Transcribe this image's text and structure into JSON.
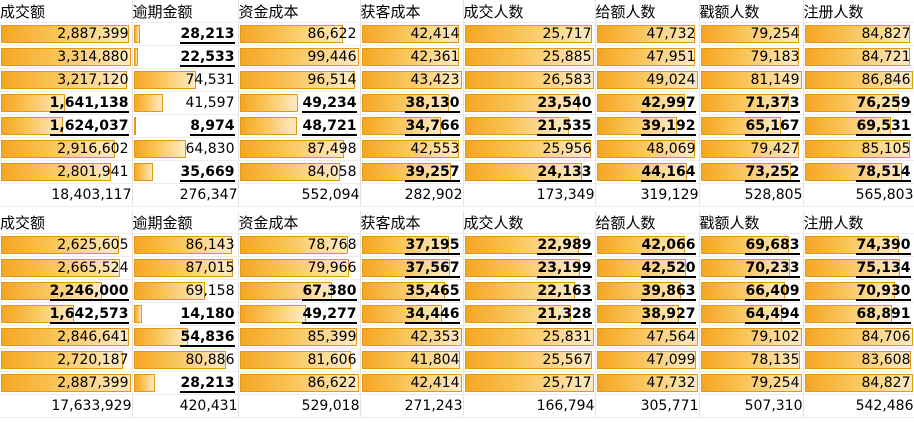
{
  "columns": [
    "成交额",
    "逾期金额",
    "资金成本",
    "获客成本",
    "成交人数",
    "给额人数",
    "戳额人数",
    "注册人数"
  ],
  "colors": {
    "bar_fill": "#f5a623",
    "bar_border": "#e39a12",
    "gridline": "#e3e3e3"
  },
  "tables": [
    {
      "rows": [
        [
          {
            "v": "2,887,399",
            "f": 0.99
          },
          {
            "v": "28,213",
            "f": 0.08,
            "b": true,
            "u": true
          },
          {
            "v": "86,622",
            "f": 0.87
          },
          {
            "v": "42,414",
            "f": 0.98
          },
          {
            "v": "25,717",
            "f": 0.99
          },
          {
            "v": "47,732",
            "f": 0.98
          },
          {
            "v": "79,254",
            "f": 0.98
          },
          {
            "v": "84,827",
            "f": 0.98
          }
        ],
        [
          {
            "v": "3,314,880",
            "f": 1.0
          },
          {
            "v": "22,533",
            "f": 0.06,
            "b": true,
            "u": true
          },
          {
            "v": "99,446",
            "f": 1.0
          },
          {
            "v": "42,361",
            "f": 0.98
          },
          {
            "v": "25,885",
            "f": 1.0
          },
          {
            "v": "47,951",
            "f": 0.98
          },
          {
            "v": "79,183",
            "f": 0.98
          },
          {
            "v": "84,721",
            "f": 0.98
          }
        ],
        [
          {
            "v": "3,217,120",
            "f": 0.97
          },
          {
            "v": "74,531",
            "f": 0.61
          },
          {
            "v": "96,514",
            "f": 0.97
          },
          {
            "v": "43,423",
            "f": 1.0
          },
          {
            "v": "26,583",
            "f": 1.0
          },
          {
            "v": "49,024",
            "f": 1.0
          },
          {
            "v": "81,149",
            "f": 1.0
          },
          {
            "v": "86,846",
            "f": 1.0
          }
        ],
        [
          {
            "v": "1,641,138",
            "f": 0.5,
            "b": true,
            "u": true
          },
          {
            "v": "41,597",
            "f": 0.3
          },
          {
            "v": "49,234",
            "f": 0.5,
            "b": true,
            "u": true
          },
          {
            "v": "38,130",
            "f": 0.88,
            "b": true,
            "u": true
          },
          {
            "v": "23,540",
            "f": 0.89,
            "b": true,
            "u": true
          },
          {
            "v": "42,997",
            "f": 0.88,
            "b": true,
            "u": true
          },
          {
            "v": "71,373",
            "f": 0.88,
            "b": true,
            "u": true
          },
          {
            "v": "76,259",
            "f": 0.88,
            "b": true,
            "u": true
          }
        ],
        [
          {
            "v": "1,624,037",
            "f": 0.49,
            "b": true,
            "u": true
          },
          {
            "v": "8,974",
            "f": 0.02,
            "b": true,
            "u": true
          },
          {
            "v": "48,721",
            "f": 0.49,
            "b": true,
            "u": true
          },
          {
            "v": "34,766",
            "f": 0.8,
            "b": true,
            "u": true
          },
          {
            "v": "21,535",
            "f": 0.81,
            "b": true,
            "u": true
          },
          {
            "v": "39,192",
            "f": 0.8,
            "b": true,
            "u": true
          },
          {
            "v": "65,167",
            "f": 0.8,
            "b": true,
            "u": true
          },
          {
            "v": "69,531",
            "f": 0.8,
            "b": true,
            "u": true
          }
        ],
        [
          {
            "v": "2,916,602",
            "f": 0.88
          },
          {
            "v": "64,830",
            "f": 0.52
          },
          {
            "v": "87,498",
            "f": 0.88
          },
          {
            "v": "42,553",
            "f": 0.98
          },
          {
            "v": "25,956",
            "f": 0.98
          },
          {
            "v": "48,069",
            "f": 0.98
          },
          {
            "v": "79,427",
            "f": 0.98
          },
          {
            "v": "85,105",
            "f": 0.98
          }
        ],
        [
          {
            "v": "2,801,941",
            "f": 0.85
          },
          {
            "v": "35,669",
            "f": 0.2,
            "b": true,
            "u": true
          },
          {
            "v": "84,058",
            "f": 0.85
          },
          {
            "v": "39,257",
            "f": 0.9,
            "b": true,
            "u": true
          },
          {
            "v": "24,133",
            "f": 0.91,
            "b": true,
            "u": true
          },
          {
            "v": "44,164",
            "f": 0.9,
            "b": true,
            "u": true
          },
          {
            "v": "73,252",
            "f": 0.9,
            "b": true,
            "u": true
          },
          {
            "v": "78,514",
            "f": 0.9,
            "b": true,
            "u": true
          }
        ]
      ],
      "totals": [
        "18,403,117",
        "276,347",
        "552,094",
        "282,902",
        "173,349",
        "319,129",
        "528,805",
        "565,803"
      ]
    },
    {
      "rows": [
        [
          {
            "v": "2,625,605",
            "f": 0.91
          },
          {
            "v": "86,143",
            "f": 0.96
          },
          {
            "v": "78,768",
            "f": 0.91
          },
          {
            "v": "37,195",
            "f": 0.88,
            "b": true,
            "u": true
          },
          {
            "v": "22,989",
            "f": 0.89,
            "b": true,
            "u": true
          },
          {
            "v": "42,066",
            "f": 0.88,
            "b": true,
            "u": true
          },
          {
            "v": "69,683",
            "f": 0.88,
            "b": true,
            "u": true
          },
          {
            "v": "74,390",
            "f": 0.88,
            "b": true,
            "u": true
          }
        ],
        [
          {
            "v": "2,665,524",
            "f": 0.92
          },
          {
            "v": "87,015",
            "f": 0.97
          },
          {
            "v": "79,966",
            "f": 0.92
          },
          {
            "v": "37,567",
            "f": 0.89,
            "b": true,
            "u": true
          },
          {
            "v": "23,199",
            "f": 0.9,
            "b": true,
            "u": true
          },
          {
            "v": "42,520",
            "f": 0.89,
            "b": true,
            "u": true
          },
          {
            "v": "70,233",
            "f": 0.89,
            "b": true,
            "u": true
          },
          {
            "v": "75,134",
            "f": 0.89,
            "b": true,
            "u": true
          }
        ],
        [
          {
            "v": "2,246,000",
            "f": 0.78,
            "b": true,
            "u": true
          },
          {
            "v": "69,158",
            "f": 0.7
          },
          {
            "v": "67,380",
            "f": 0.78,
            "b": true,
            "u": true
          },
          {
            "v": "35,465",
            "f": 0.84,
            "b": true,
            "u": true
          },
          {
            "v": "22,163",
            "f": 0.86,
            "b": true,
            "u": true
          },
          {
            "v": "39,863",
            "f": 0.84,
            "b": true,
            "u": true
          },
          {
            "v": "66,409",
            "f": 0.84,
            "b": true,
            "u": true
          },
          {
            "v": "70,930",
            "f": 0.84,
            "b": true,
            "u": true
          }
        ],
        [
          {
            "v": "1,642,573",
            "f": 0.57,
            "b": true,
            "u": true
          },
          {
            "v": "14,180",
            "f": 0.1,
            "b": true,
            "u": true
          },
          {
            "v": "49,277",
            "f": 0.57,
            "b": true,
            "u": true
          },
          {
            "v": "34,446",
            "f": 0.81,
            "b": true,
            "u": true
          },
          {
            "v": "21,328",
            "f": 0.83,
            "b": true,
            "u": true
          },
          {
            "v": "38,927",
            "f": 0.82,
            "b": true,
            "u": true
          },
          {
            "v": "64,494",
            "f": 0.81,
            "b": true,
            "u": true
          },
          {
            "v": "68,891",
            "f": 0.81,
            "b": true,
            "u": true
          }
        ],
        [
          {
            "v": "2,846,641",
            "f": 0.99
          },
          {
            "v": "54,836",
            "f": 0.54,
            "b": true,
            "u": true
          },
          {
            "v": "85,399",
            "f": 0.99
          },
          {
            "v": "42,353",
            "f": 1.0
          },
          {
            "v": "25,831",
            "f": 1.0
          },
          {
            "v": "47,564",
            "f": 1.0
          },
          {
            "v": "79,102",
            "f": 1.0
          },
          {
            "v": "84,706",
            "f": 1.0
          }
        ],
        [
          {
            "v": "2,720,187",
            "f": 0.94
          },
          {
            "v": "80,886",
            "f": 0.9
          },
          {
            "v": "81,606",
            "f": 0.94
          },
          {
            "v": "41,804",
            "f": 0.99
          },
          {
            "v": "25,567",
            "f": 0.99
          },
          {
            "v": "47,099",
            "f": 0.99
          },
          {
            "v": "78,135",
            "f": 0.99
          },
          {
            "v": "83,608",
            "f": 0.99
          }
        ],
        [
          {
            "v": "2,887,399",
            "f": 1.0
          },
          {
            "v": "28,213",
            "f": 0.22,
            "b": true,
            "u": true
          },
          {
            "v": "86,622",
            "f": 1.0
          },
          {
            "v": "42,414",
            "f": 1.0
          },
          {
            "v": "25,717",
            "f": 1.0
          },
          {
            "v": "47,732",
            "f": 1.0
          },
          {
            "v": "79,254",
            "f": 1.0
          },
          {
            "v": "84,827",
            "f": 1.0
          }
        ]
      ],
      "totals": [
        "17,633,929",
        "420,431",
        "529,018",
        "271,243",
        "166,794",
        "305,771",
        "507,310",
        "542,486"
      ]
    }
  ]
}
